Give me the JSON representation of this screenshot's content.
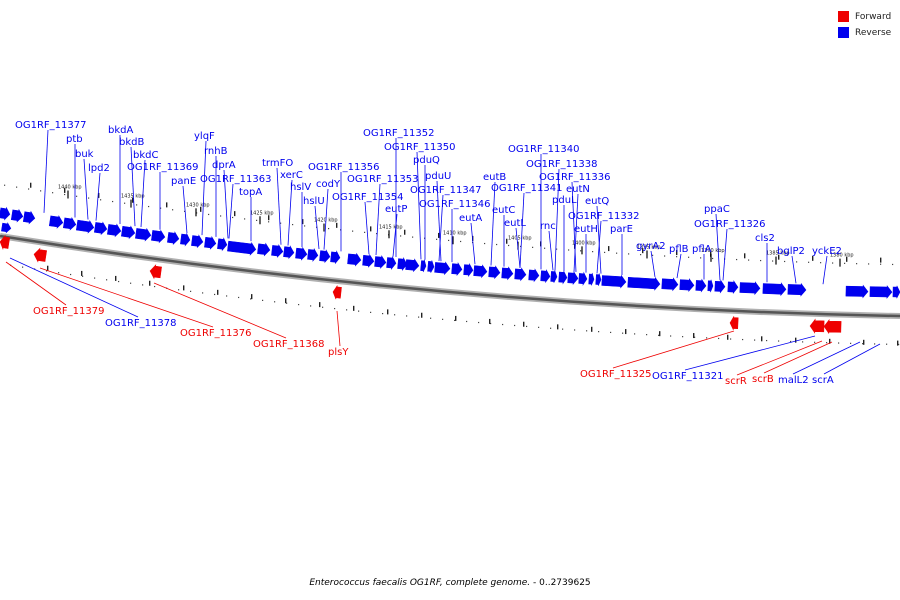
{
  "legend": {
    "forward_label": "Forward",
    "reverse_label": "Reverse",
    "forward_color": "#ee0000",
    "reverse_color": "#0000ee"
  },
  "caption": {
    "organism": "Enterococcus faecalis OG1RF, complete genome.",
    "range": " - 0..2739625"
  },
  "ticks": [
    "1440 kbp",
    "1435 kbp",
    "1430 kbp",
    "1425 kbp",
    "1420 kbp",
    "1415 kbp",
    "1410 kbp",
    "1405 kbp",
    "1400 kbp",
    "1395 kbp",
    "1390 kbp",
    "1385 kbp",
    "1380 kbp"
  ],
  "reverse_genes": [
    "OG1RF_11377",
    "ptb",
    "buk",
    "lpd2",
    "bkdA",
    "bkdB",
    "bkdC",
    "OG1RF_11369",
    "panE",
    "ylqF",
    "rnhB",
    "dprA",
    "OG1RF_11363",
    "topA",
    "trmFO",
    "xerC",
    "hslV",
    "hslU",
    "codY",
    "OG1RF_11356",
    "OG1RF_11354",
    "OG1RF_11353",
    "OG1RF_11352",
    "OG1RF_11350",
    "eutP",
    "pduQ",
    "pduU",
    "OG1RF_11347",
    "OG1RF_11346",
    "eutA",
    "eutB",
    "eutC",
    "eutL",
    "OG1RF_11341",
    "OG1RF_11340",
    "rnc",
    "OG1RF_11338",
    "pduL",
    "OG1RF_11336",
    "eutN",
    "eutH",
    "eutQ",
    "OG1RF_11332",
    "parE",
    "gyrA2",
    "pflB",
    "pflA",
    "ppaC",
    "OG1RF_11326",
    "cls2",
    "bglP2",
    "yckE2"
  ],
  "lower_genes": [
    {
      "name": "OG1RF_11379",
      "strand": "forward"
    },
    {
      "name": "OG1RF_11378",
      "strand": "reverse"
    },
    {
      "name": "OG1RF_11376",
      "strand": "forward"
    },
    {
      "name": "OG1RF_11368",
      "strand": "forward"
    },
    {
      "name": "plsY",
      "strand": "forward"
    },
    {
      "name": "OG1RF_11325",
      "strand": "forward"
    },
    {
      "name": "OG1RF_11321",
      "strand": "reverse"
    },
    {
      "name": "scrR",
      "strand": "forward"
    },
    {
      "name": "scrB",
      "strand": "forward"
    },
    {
      "name": "malL2",
      "strand": "reverse"
    },
    {
      "name": "scrA",
      "strand": "reverse"
    }
  ]
}
